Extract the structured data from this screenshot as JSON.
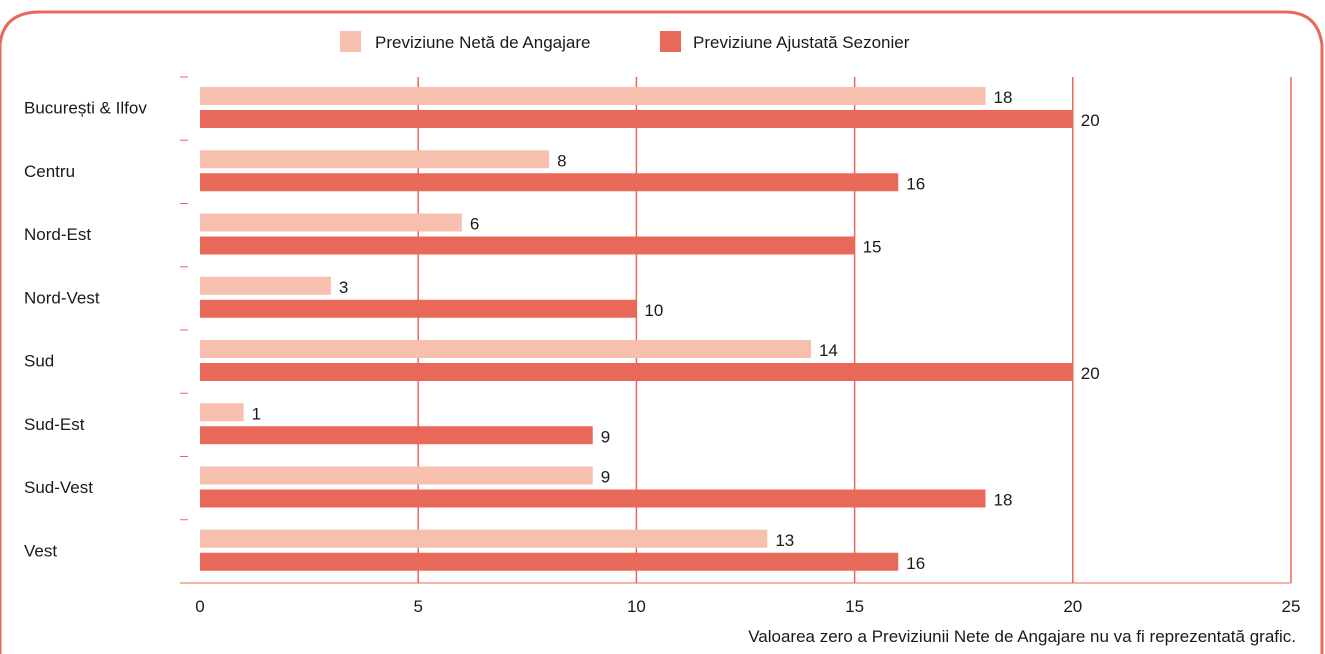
{
  "colors": {
    "frame": "#E8695A",
    "grid": "#E8695A",
    "series_light": "#F6BFAE",
    "series_dark": "#E8695A",
    "text": "#1a1a1a"
  },
  "footnote": "Valoarea zero a Previziunii Nete de Angajare nu va fi reprezentată grafic.",
  "chart_data": {
    "type": "bar",
    "orientation": "horizontal",
    "categories": [
      "București & Ilfov",
      "Centru",
      "Nord-Est",
      "Nord-Vest",
      "Sud",
      "Sud-Est",
      "Sud-Vest",
      "Vest"
    ],
    "series": [
      {
        "name": "Previziune Netă de Angajare",
        "color": "#F6BFAE",
        "values": [
          18,
          8,
          6,
          3,
          14,
          1,
          9,
          13
        ]
      },
      {
        "name": "Previziune Ajustată Sezonier",
        "color": "#E8695A",
        "values": [
          20,
          16,
          15,
          10,
          20,
          9,
          18,
          16
        ]
      }
    ],
    "xlim": [
      0,
      25
    ],
    "xticks": [
      "0",
      "5",
      "10",
      "15",
      "20",
      "25"
    ],
    "grid": true,
    "legend": "top-center",
    "show_value_labels": true
  }
}
